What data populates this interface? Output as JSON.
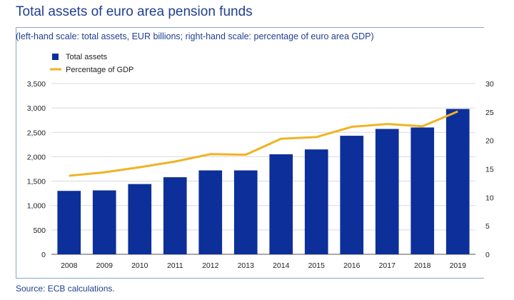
{
  "title": "Total assets of euro area pension funds",
  "subtitle": "(left-hand scale: total assets, EUR billions; right-hand scale: percentage of euro area GDP)",
  "source": "Source: ECB calculations.",
  "colors": {
    "bar": "#0d2f9a",
    "line": "#f0b323",
    "text": "#1f3f8f"
  },
  "chart_data": {
    "type": "bar",
    "categories": [
      "2008",
      "2009",
      "2010",
      "2011",
      "2012",
      "2013",
      "2014",
      "2015",
      "2016",
      "2017",
      "2018",
      "2019"
    ],
    "series": [
      {
        "name": "Total assets",
        "type": "bar",
        "axis": "left",
        "values": [
          1300,
          1310,
          1440,
          1580,
          1720,
          1720,
          2050,
          2150,
          2430,
          2570,
          2600,
          2980
        ]
      },
      {
        "name": "Percentage of GDP",
        "type": "line",
        "axis": "right",
        "values": [
          13.8,
          14.4,
          15.3,
          16.3,
          17.6,
          17.5,
          20.3,
          20.6,
          22.4,
          22.9,
          22.5,
          25.1
        ]
      }
    ],
    "ylim": [
      0,
      3500
    ],
    "yticks": [
      "0",
      "500",
      "1,000",
      "1,500",
      "2,000",
      "2,500",
      "3,000",
      "3,500"
    ],
    "y2lim": [
      0,
      30
    ],
    "y2ticks": [
      "0",
      "5",
      "10",
      "15",
      "20",
      "25",
      "30"
    ],
    "grid": true,
    "legend_position": "top-left"
  }
}
